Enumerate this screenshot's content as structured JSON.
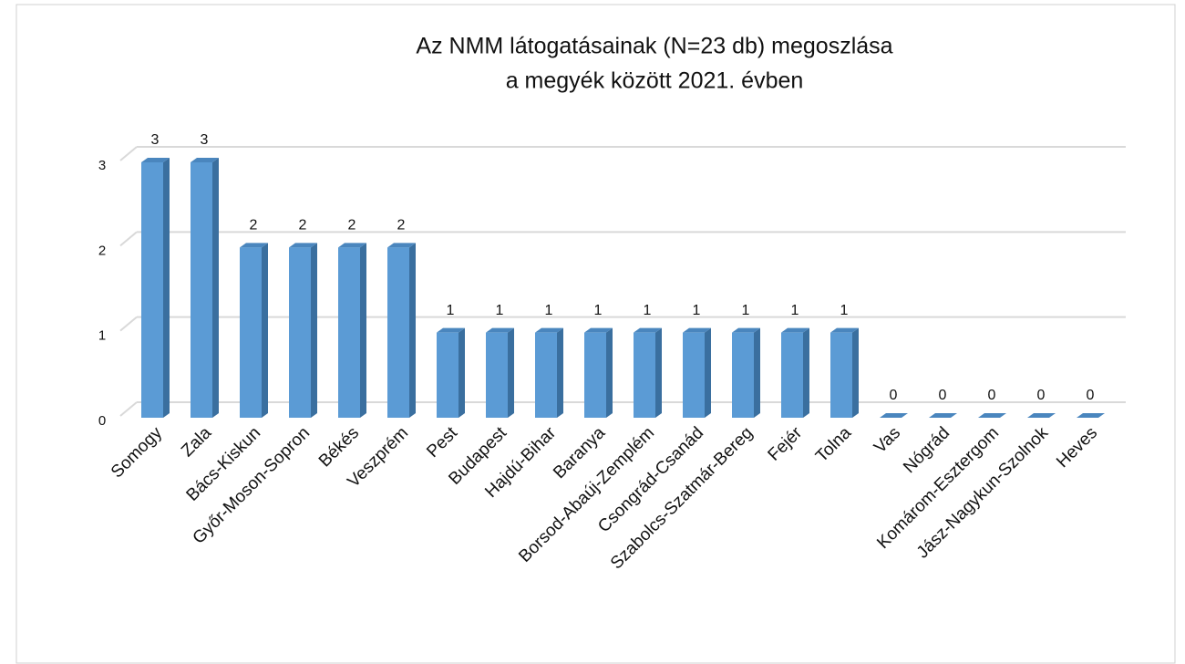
{
  "chart_data": {
    "type": "bar",
    "title": [
      "Az NMM látogatásainak (N=23 db) megoszlása",
      "a megyék között 2021. évben"
    ],
    "categories": [
      "Somogy",
      "Zala",
      "Bács-Kiskun",
      "Győr-Moson-Sopron",
      "Békés",
      "Veszprém",
      "Pest",
      "Budapest",
      "Hajdú-Bihar",
      "Baranya",
      "Borsod-Abaúj-Zemplém",
      "Csongrád-Csanád",
      "Szabolcs-Szatmár-Bereg",
      "Fejér",
      "Tolna",
      "Vas",
      "Nógrád",
      "Komárom-Esztergom",
      "Jász-Nagykun-Szolnok",
      "Heves"
    ],
    "values": [
      3,
      3,
      2,
      2,
      2,
      2,
      1,
      1,
      1,
      1,
      1,
      1,
      1,
      1,
      1,
      0,
      0,
      0,
      0,
      0
    ],
    "color": "#5b9bd5",
    "ylim": [
      0,
      3
    ],
    "yticks": [
      0,
      1,
      2,
      3
    ],
    "grid": true
  }
}
